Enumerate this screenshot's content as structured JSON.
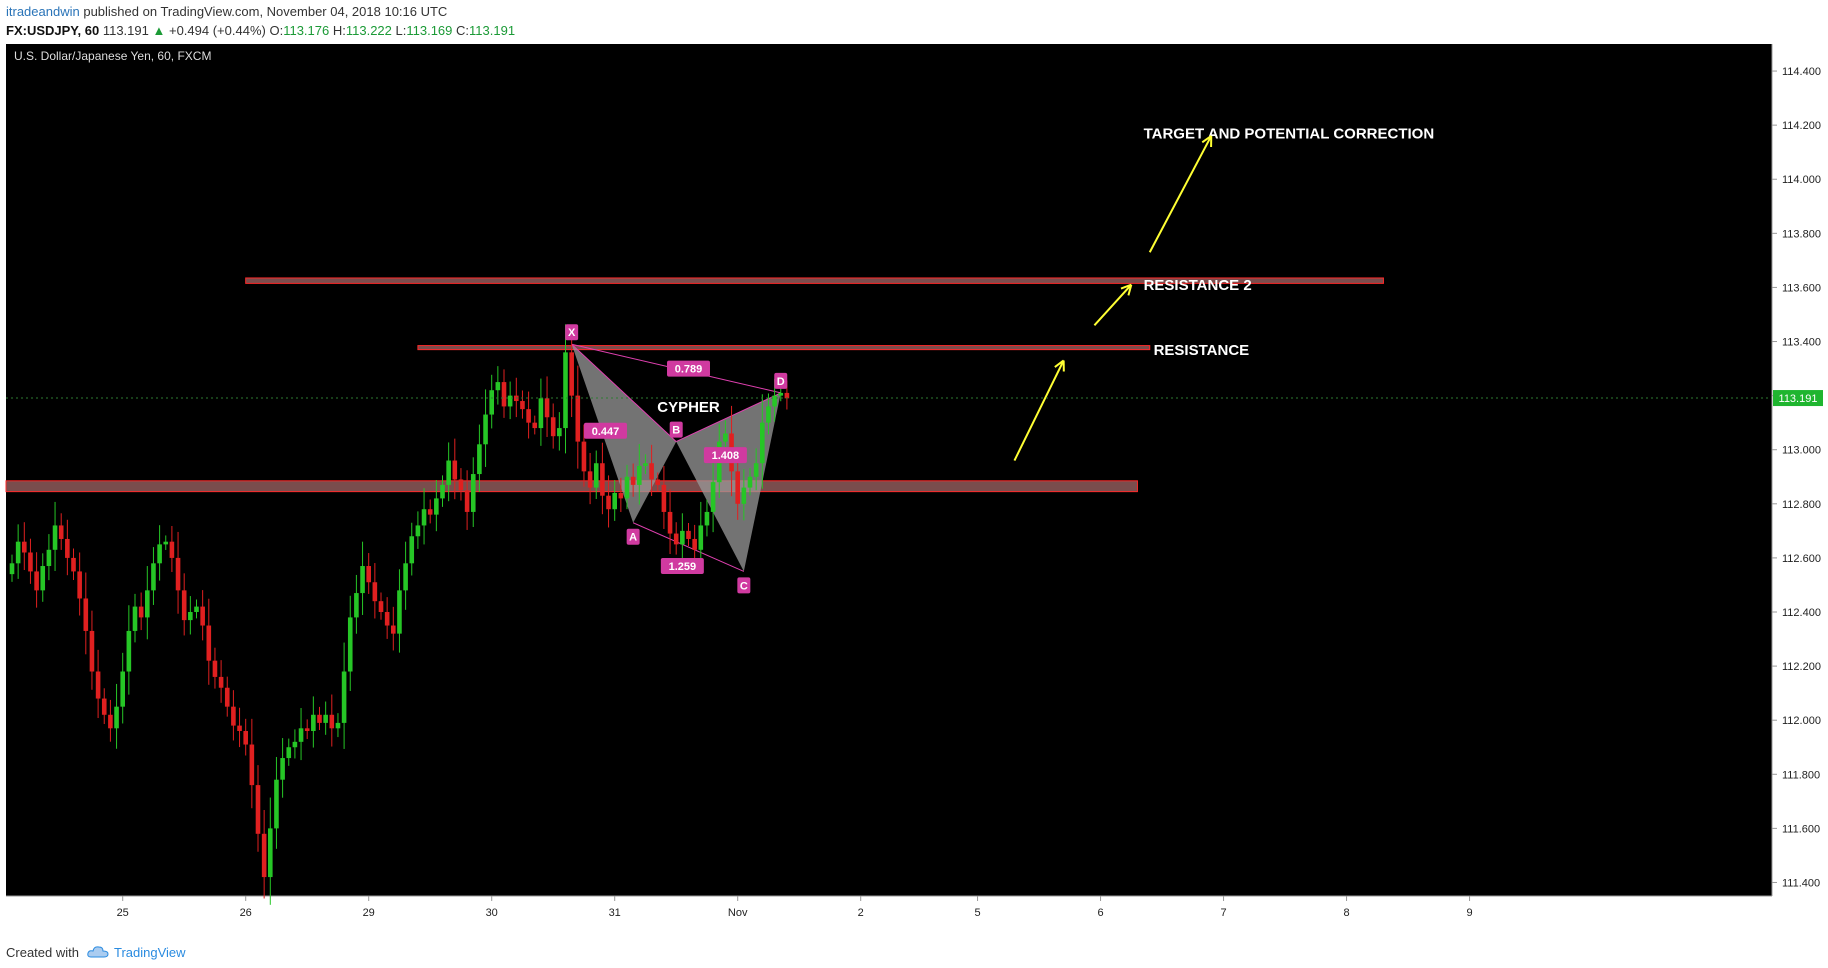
{
  "header": {
    "author": "itradeandwin",
    "published_text": "published on TradingView.com, November 04, 2018 10:16 UTC",
    "symbol_label": "FX:USDJPY, 60",
    "last_price": "113.191",
    "change_arrow": "▲",
    "change": "+0.494 (+0.44%)",
    "open_label": "O:",
    "open": "113.176",
    "high_label": "H:",
    "high": "113.222",
    "low_label": "L:",
    "low": "113.169",
    "close_label": "C:",
    "close": "113.191"
  },
  "footer": {
    "created_with": "Created with",
    "brand": "TradingView"
  },
  "colors": {
    "background": "#000000",
    "up_candle": "#26c626",
    "down_candle": "#e02020",
    "zone": "#8f5a5a",
    "zone_border": "#ff2a2a",
    "pattern_fill": "#9a9a9a",
    "pattern_line": "#e040b0",
    "label_bg": "#d03aa0",
    "arrow": "#ffff33"
  },
  "chart_data": {
    "type": "candlestick",
    "title": "U.S. Dollar/Japanese Yen, 60, FXCM",
    "ylim": [
      111.35,
      114.5
    ],
    "y_ticks": [
      "114.400",
      "114.200",
      "114.000",
      "113.800",
      "113.600",
      "113.400",
      "113.200",
      "113.000",
      "112.800",
      "112.600",
      "112.400",
      "112.200",
      "112.000",
      "111.800",
      "111.600",
      "111.400"
    ],
    "x_ticks": [
      {
        "label": "25",
        "bar": 18
      },
      {
        "label": "26",
        "bar": 38
      },
      {
        "label": "29",
        "bar": 58
      },
      {
        "label": "30",
        "bar": 78
      },
      {
        "label": "31",
        "bar": 98
      },
      {
        "label": "Nov",
        "bar": 118
      },
      {
        "label": "2",
        "bar": 138
      },
      {
        "label": "5",
        "bar": 157
      },
      {
        "label": "6",
        "bar": 177
      },
      {
        "label": "7",
        "bar": 197
      },
      {
        "label": "8",
        "bar": 217
      },
      {
        "label": "9",
        "bar": 237
      }
    ],
    "current_price": "113.191",
    "close_series": [
      112.58,
      112.66,
      112.62,
      112.55,
      112.48,
      112.57,
      112.63,
      112.72,
      112.67,
      112.6,
      112.55,
      112.45,
      112.33,
      112.18,
      112.08,
      112.02,
      111.97,
      112.05,
      112.18,
      112.33,
      112.42,
      112.38,
      112.48,
      112.58,
      112.65,
      112.66,
      112.6,
      112.48,
      112.37,
      112.4,
      112.42,
      112.35,
      112.22,
      112.16,
      112.12,
      112.05,
      111.98,
      111.96,
      111.91,
      111.76,
      111.58,
      111.42,
      111.6,
      111.78,
      111.86,
      111.9,
      111.92,
      111.97,
      111.96,
      112.02,
      111.99,
      112.02,
      111.97,
      111.99,
      112.18,
      112.38,
      112.47,
      112.57,
      112.51,
      112.44,
      112.4,
      112.35,
      112.32,
      112.48,
      112.58,
      112.68,
      112.72,
      112.78,
      112.76,
      112.82,
      112.87,
      112.96,
      112.89,
      112.85,
      112.77,
      112.91,
      113.02,
      113.13,
      113.22,
      113.25,
      113.16,
      113.2,
      113.18,
      113.15,
      113.1,
      113.08,
      113.19,
      113.12,
      113.05,
      113.08,
      113.36,
      113.2,
      113.03,
      112.92,
      112.86,
      112.95,
      112.83,
      112.78,
      112.84,
      112.82,
      112.9,
      112.87,
      112.94,
      112.95,
      112.89,
      112.87,
      112.77,
      112.69,
      112.65,
      112.7,
      112.67,
      112.63,
      112.72,
      112.77,
      112.88,
      113.03,
      113.06,
      112.92,
      112.8,
      112.86,
      112.9,
      112.95,
      113.1,
      113.16,
      113.2,
      113.21,
      113.19
    ],
    "zones": [
      {
        "name": "support-zone",
        "from_bar": -1,
        "to_bar": 183,
        "y_top": 112.885,
        "y_bottom": 112.845
      },
      {
        "name": "resistance-zone",
        "from_bar": 66,
        "to_bar": 185,
        "y_top": 113.385,
        "y_bottom": 113.37
      },
      {
        "name": "resistance-2-zone",
        "from_bar": 38,
        "to_bar": 223,
        "y_top": 113.635,
        "y_bottom": 113.615
      }
    ],
    "harmonic": {
      "name": "CYPHER",
      "points": [
        {
          "label": "X",
          "bar": 91,
          "price": 113.39
        },
        {
          "label": "A",
          "bar": 101,
          "price": 112.73
        },
        {
          "label": "B",
          "bar": 108,
          "price": 113.03
        },
        {
          "label": "C",
          "bar": 119,
          "price": 112.55
        },
        {
          "label": "D",
          "bar": 125,
          "price": 113.21
        }
      ],
      "ratios": [
        {
          "label": "0.447",
          "bar": 96.5,
          "price": 113.07
        },
        {
          "label": "0.789",
          "bar": 110,
          "price": 113.3
        },
        {
          "label": "1.408",
          "bar": 116,
          "price": 112.98
        },
        {
          "label": "1.259",
          "bar": 109,
          "price": 112.57
        }
      ]
    },
    "annotations": [
      {
        "text": "TARGET AND POTENTIAL CORRECTION",
        "bar": 184,
        "price": 114.15
      },
      {
        "text": "RESISTANCE 2",
        "bar": 184,
        "price": 113.59
      },
      {
        "text": "RESISTANCE",
        "bar": 184,
        "price": 113.35
      },
      {
        "text": "CYPHER",
        "bar": 110,
        "price": 113.14
      }
    ],
    "arrows": [
      {
        "from_bar": 163,
        "from_price": 112.96,
        "to_bar": 171,
        "to_price": 113.33
      },
      {
        "from_bar": 176,
        "from_price": 113.46,
        "to_bar": 182,
        "to_price": 113.61
      },
      {
        "from_bar": 185,
        "from_price": 113.73,
        "to_bar": 195,
        "to_price": 114.16
      }
    ]
  }
}
